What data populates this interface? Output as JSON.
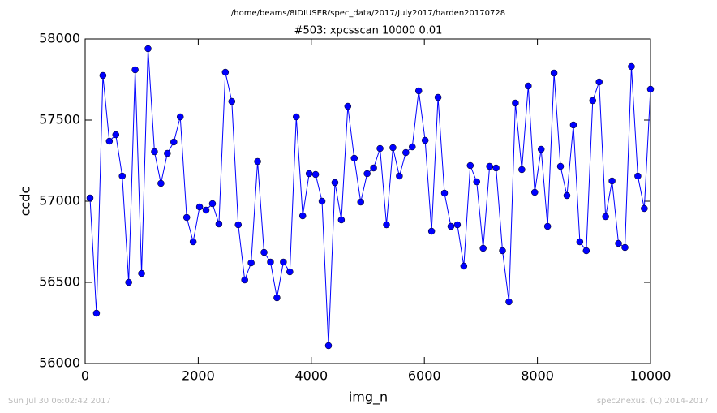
{
  "chart_data": {
    "type": "line",
    "title": "/home/beams/8IDIUSER/spec_data/2017/July2017/harden20170728",
    "subtitle": "#503: xpcsscan 10000 0.01",
    "xlabel": "img_n",
    "ylabel": "ccdc",
    "annotations": [
      "Sun Jul 30 06:02:42 2017",
      "spec2nexus, (C) 2014-2017"
    ],
    "x": [
      86,
      200,
      314,
      428,
      542,
      656,
      770,
      884,
      998,
      1112,
      1226,
      1340,
      1454,
      1568,
      1682,
      1796,
      1910,
      2024,
      2138,
      2252,
      2366,
      2480,
      2594,
      2708,
      2822,
      2936,
      3050,
      3164,
      3278,
      3392,
      3506,
      3620,
      3734,
      3848,
      3962,
      4076,
      4190,
      4304,
      4418,
      4532,
      4646,
      4760,
      4874,
      4988,
      5102,
      5216,
      5330,
      5444,
      5558,
      5672,
      5786,
      5900,
      6014,
      6128,
      6242,
      6356,
      6470,
      6584,
      6698,
      6812,
      6926,
      7040,
      7154,
      7268,
      7382,
      7496,
      7610,
      7724,
      7838,
      7952,
      8066,
      8180,
      8294,
      8408,
      8522,
      8636,
      8750,
      8864,
      8978,
      9092,
      9206,
      9320,
      9434,
      9548,
      9662,
      9776,
      9890,
      10000
    ],
    "series": [
      {
        "name": "ccdc",
        "color": "#0000ff",
        "values": [
          57020,
          56310,
          57775,
          57370,
          57410,
          57155,
          56500,
          57810,
          56555,
          57940,
          57305,
          57110,
          57295,
          57365,
          57520,
          56900,
          56750,
          56965,
          56945,
          56985,
          56860,
          57795,
          57615,
          56855,
          56515,
          56620,
          57245,
          56685,
          56625,
          56405,
          56625,
          56565,
          57520,
          56910,
          57170,
          57165,
          57000,
          56110,
          57115,
          56885,
          57585,
          57265,
          56995,
          57170,
          57205,
          57325,
          56855,
          57330,
          57155,
          57300,
          57335,
          57680,
          57375,
          56815,
          57640,
          57050,
          56845,
          56855,
          56600,
          57220,
          57120,
          56710,
          57215,
          57205,
          56695,
          56380,
          57605,
          57195,
          57710,
          57055,
          57320,
          56845,
          57790,
          57215,
          57035,
          57470,
          56750,
          56695,
          57620,
          57735,
          56905,
          57125,
          56740,
          56715,
          57830,
          57155,
          56955,
          57690
        ]
      }
    ],
    "xlim": [
      0,
      10000
    ],
    "xticks": [
      0,
      2000,
      4000,
      6000,
      8000,
      10000
    ],
    "ylim": [
      56000,
      58000
    ],
    "yticks": [
      56000,
      56500,
      57000,
      57500,
      58000
    ],
    "grid": false,
    "marker": "circle"
  }
}
